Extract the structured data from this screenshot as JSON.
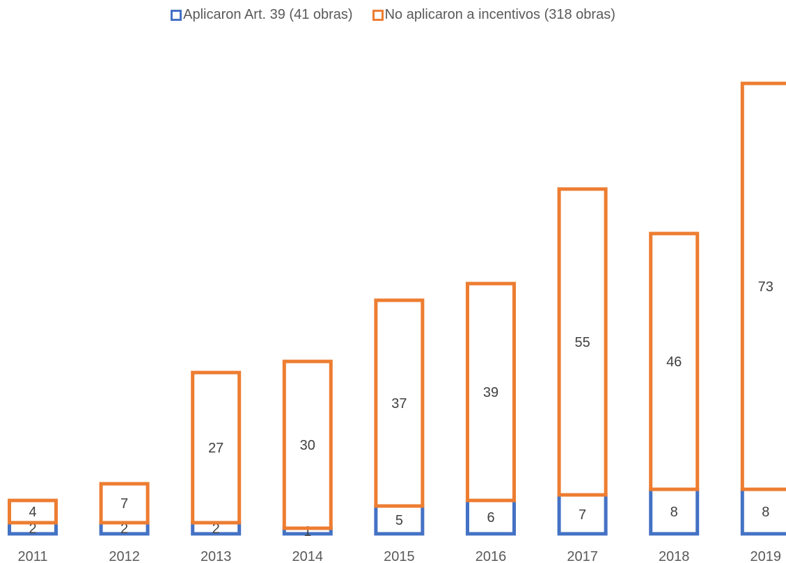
{
  "chart_data": {
    "type": "bar",
    "stacked": true,
    "categories": [
      "2011",
      "2012",
      "2013",
      "2014",
      "2015",
      "2016",
      "2017",
      "2018",
      "2019"
    ],
    "series": [
      {
        "name": "Aplicaron Art. 39 (41 obras)",
        "values": [
          2,
          2,
          2,
          1,
          5,
          6,
          7,
          8,
          8
        ],
        "color": "#4472C4"
      },
      {
        "name": "No aplicaron a incentivos (318 obras)",
        "values": [
          4,
          7,
          27,
          30,
          37,
          39,
          55,
          46,
          73
        ],
        "color": "#ED7D31"
      }
    ],
    "title": "",
    "xlabel": "",
    "ylabel": "",
    "ylim": [
      0,
      82
    ],
    "grid": false,
    "legend_position": "top",
    "bar_fill": "none",
    "label_color": "#404040"
  }
}
